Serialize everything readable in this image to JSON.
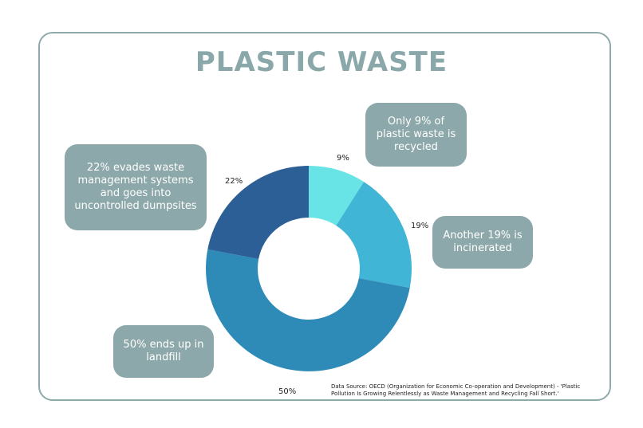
{
  "title": "PLASTIC WASTE",
  "source": "Data Source: OECD (Organization for Economic Co-operation and Development) - 'Plastic Pollution Is Growing Relentlessly as Waste Management and Recycling Fall Short.'",
  "callouts": {
    "recycled": "Only 9% of plastic waste is recycled",
    "incinerated": "Another 19% is incinerated",
    "landfill": "50% ends up in landfill",
    "dumpsites": "22% evades waste management systems and goes into uncontrolled dumpsites"
  },
  "chart_data": {
    "type": "pie",
    "donut": true,
    "values": [
      9,
      19,
      50,
      22
    ],
    "labels": [
      "9%",
      "19%",
      "50%",
      "22%"
    ],
    "colors": [
      "#68e3e6",
      "#41b5d5",
      "#2e8bb8",
      "#2d5f97"
    ]
  }
}
